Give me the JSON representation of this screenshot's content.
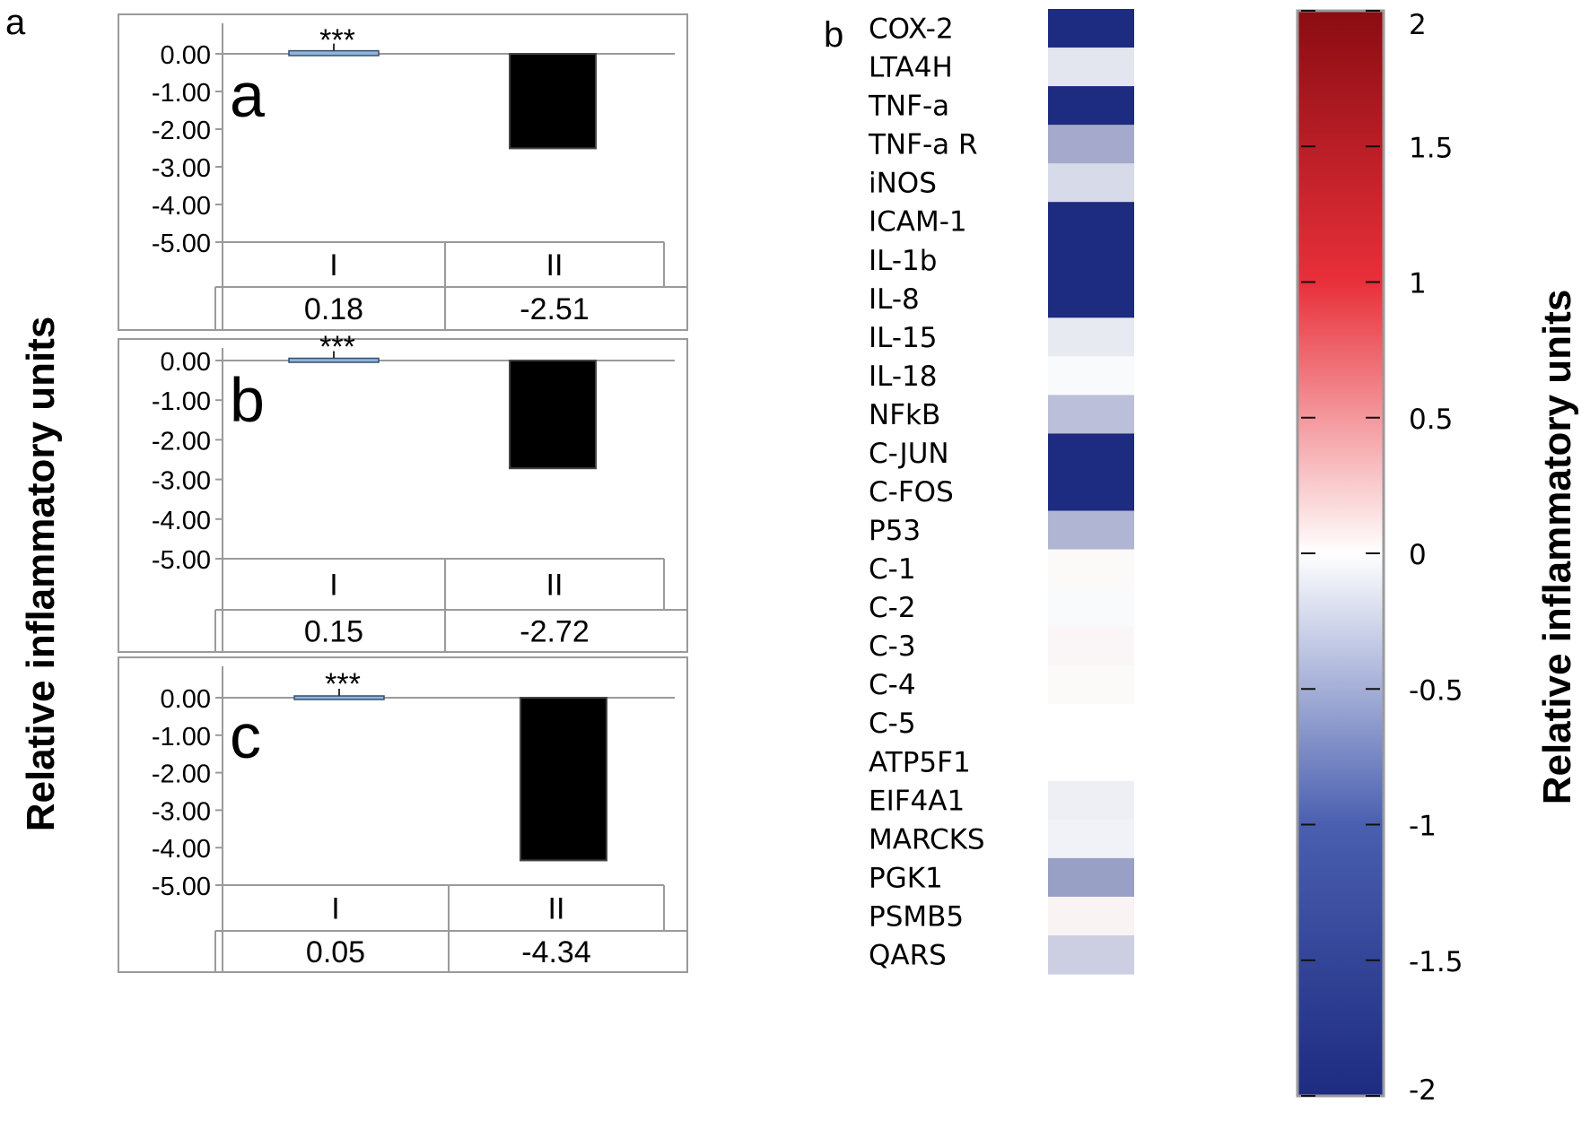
{
  "panel_labels": {
    "left": "a",
    "right": "b"
  },
  "left_ylabel": "Relative inflammatory units",
  "right_ylabel": "Relative inflammatory units",
  "chart_data": [
    {
      "type": "bar",
      "panel_letter": "a",
      "categories": [
        "I",
        "II"
      ],
      "values": [
        0.18,
        -2.51
      ],
      "value_labels": [
        "0.18",
        "-2.51"
      ],
      "significance": "***",
      "ylim": [
        -5,
        0
      ],
      "yticks": [
        "0.00",
        "-1.00",
        "-2.00",
        "-3.00",
        "-4.00",
        "-5.00"
      ],
      "bar_colors": [
        "#8fb4dc",
        "#000000"
      ]
    },
    {
      "type": "bar",
      "panel_letter": "b",
      "categories": [
        "I",
        "II"
      ],
      "values": [
        0.15,
        -2.72
      ],
      "value_labels": [
        "0.15",
        "-2.72"
      ],
      "significance": "***",
      "ylim": [
        -5,
        0
      ],
      "yticks": [
        "0.00",
        "-1.00",
        "-2.00",
        "-3.00",
        "-4.00",
        "-5.00"
      ],
      "bar_colors": [
        "#8fb4dc",
        "#000000"
      ]
    },
    {
      "type": "bar",
      "panel_letter": "c",
      "categories": [
        "I",
        "II"
      ],
      "values": [
        0.05,
        -4.34
      ],
      "value_labels": [
        "0.05",
        "-4.34"
      ],
      "significance": "***",
      "ylim": [
        -5,
        0
      ],
      "yticks": [
        "0.00",
        "-1.00",
        "-2.00",
        "-3.00",
        "-4.00",
        "-5.00"
      ],
      "bar_colors": [
        "#8fb4dc",
        "#000000"
      ]
    },
    {
      "type": "heatmap",
      "genes": [
        "COX-2",
        "LTA4H",
        "TNF-a",
        "TNF-a R",
        "iNOS",
        "ICAM-1",
        "IL-1b",
        "IL-8",
        "IL-15",
        "IL-18",
        "NFkB",
        "C-JUN",
        "C-FOS",
        "P53",
        "C-1",
        "C-2",
        "C-3",
        "C-4",
        "C-5",
        "ATP5F1",
        "EIF4A1",
        "MARCKS",
        "PGK1",
        "PSMB5",
        "QARS"
      ],
      "values": [
        -2.0,
        -0.25,
        -2.0,
        -0.8,
        -0.35,
        -2.0,
        -2.0,
        -2.0,
        -0.2,
        -0.05,
        -0.6,
        -2.0,
        -2.0,
        -0.7,
        0.05,
        -0.05,
        0.08,
        0.05,
        0.0,
        0.0,
        -0.15,
        -0.12,
        -0.9,
        0.1,
        -0.45
      ],
      "colorbar": {
        "range": [
          -2,
          2
        ],
        "ticks": [
          "2",
          "1.5",
          "1",
          "0.5",
          "0",
          "-0.5",
          "-1",
          "-1.5",
          "-2"
        ],
        "colors": {
          "low": "#1d2b80",
          "mid": "#ffffff",
          "high": "#8a0c12"
        }
      }
    }
  ]
}
